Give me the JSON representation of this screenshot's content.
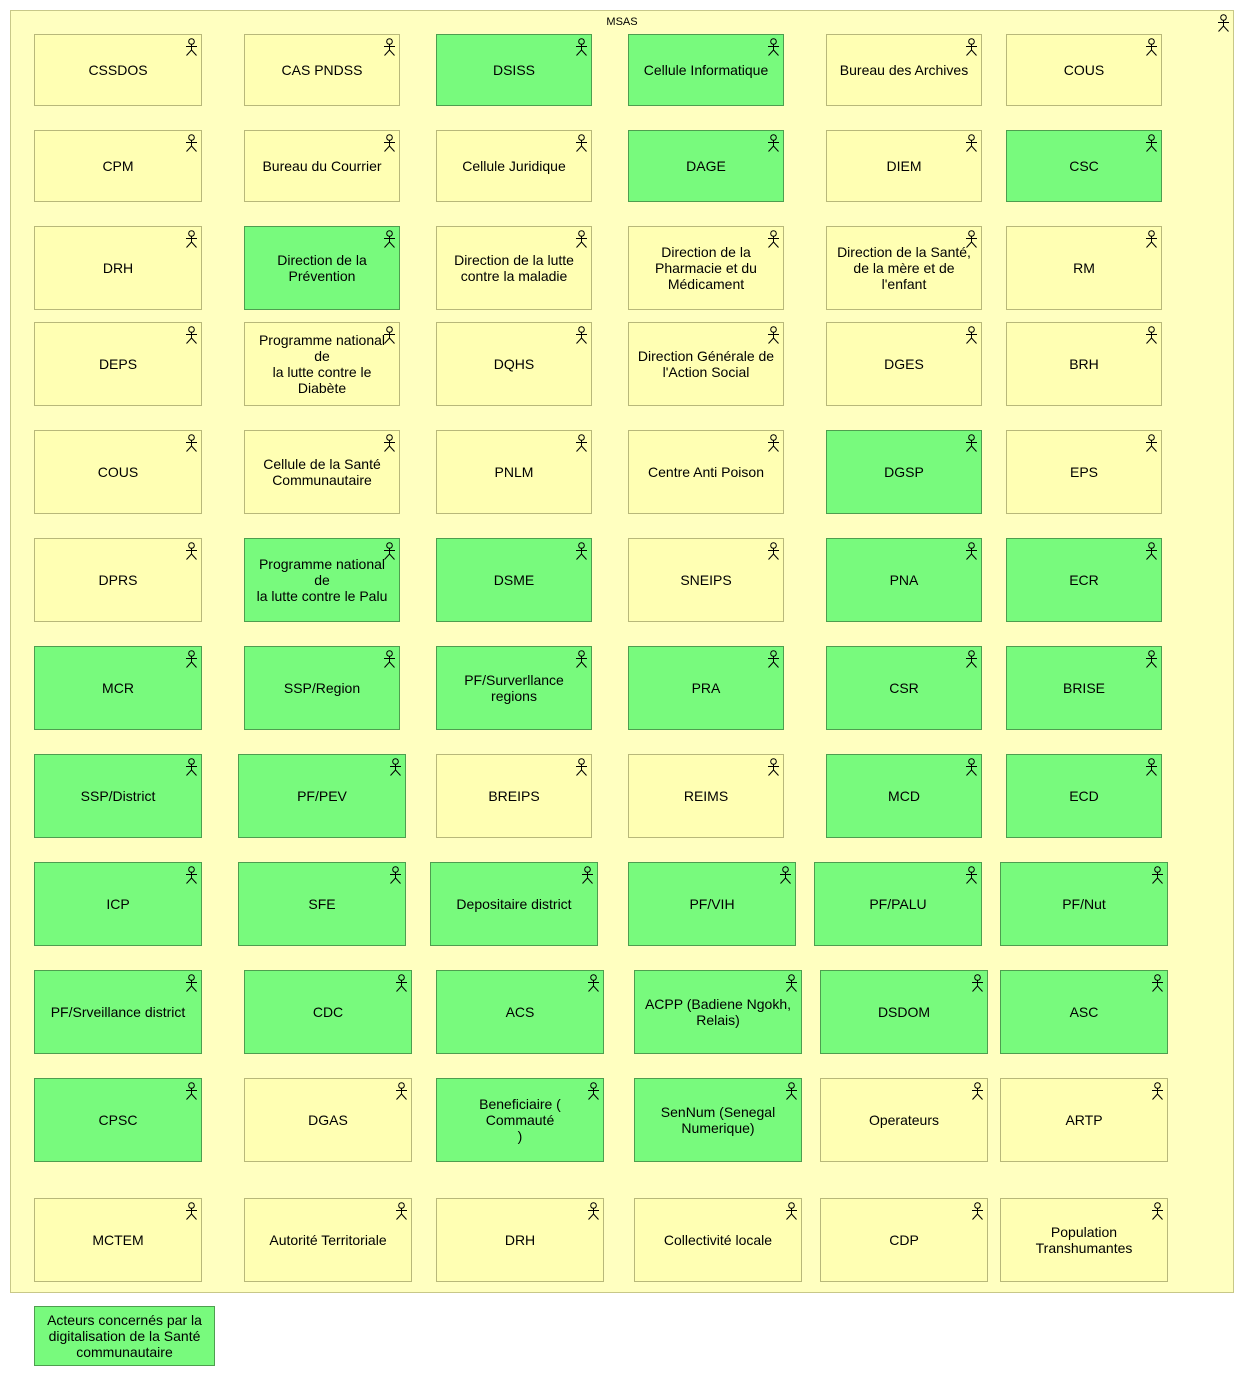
{
  "container": {
    "title": "MSAS"
  },
  "colors": {
    "default": "#ffffb3",
    "concerned": "#78fa7d"
  },
  "actors": [
    {
      "label": "CSSDOS",
      "status": "default"
    },
    {
      "label": "CAS PNDSS",
      "status": "default"
    },
    {
      "label": "DSISS",
      "status": "concerned"
    },
    {
      "label": "Cellule Informatique",
      "status": "concerned"
    },
    {
      "label": "Bureau des Archives",
      "status": "default"
    },
    {
      "label": "COUS",
      "status": "default"
    },
    {
      "label": "CPM",
      "status": "default"
    },
    {
      "label": "Bureau du Courrier",
      "status": "default"
    },
    {
      "label": "Cellule Juridique",
      "status": "default"
    },
    {
      "label": "DAGE",
      "status": "concerned"
    },
    {
      "label": "DIEM",
      "status": "default"
    },
    {
      "label": "CSC",
      "status": "concerned"
    },
    {
      "label": "DRH",
      "status": "default"
    },
    {
      "label": "Direction de la\nPrévention",
      "status": "concerned"
    },
    {
      "label": "Direction de la lutte\ncontre la maladie",
      "status": "default"
    },
    {
      "label": "Direction de la\nPharmacie et du\nMédicament",
      "status": "default"
    },
    {
      "label": "Direction de la Santé,\nde la mère et de\nl'enfant",
      "status": "default"
    },
    {
      "label": "RM",
      "status": "default"
    },
    {
      "label": "DEPS",
      "status": "default"
    },
    {
      "label": "Programme national de\nla lutte contre le\nDiabète",
      "status": "default"
    },
    {
      "label": "DQHS",
      "status": "default"
    },
    {
      "label": "Direction Générale de\nl'Action Social",
      "status": "default"
    },
    {
      "label": "DGES",
      "status": "default"
    },
    {
      "label": "BRH",
      "status": "default"
    },
    {
      "label": "COUS",
      "status": "default"
    },
    {
      "label": "Cellule de la Santé\nCommunautaire",
      "status": "default"
    },
    {
      "label": "PNLM",
      "status": "default"
    },
    {
      "label": "Centre Anti Poison",
      "status": "default"
    },
    {
      "label": "DGSP",
      "status": "concerned"
    },
    {
      "label": "EPS",
      "status": "default"
    },
    {
      "label": "DPRS",
      "status": "default"
    },
    {
      "label": "Programme national de\nla lutte contre le Palu",
      "status": "concerned"
    },
    {
      "label": "DSME",
      "status": "concerned"
    },
    {
      "label": "SNEIPS",
      "status": "default"
    },
    {
      "label": "PNA",
      "status": "concerned"
    },
    {
      "label": "ECR",
      "status": "concerned"
    },
    {
      "label": "MCR",
      "status": "concerned"
    },
    {
      "label": "SSP/Region",
      "status": "concerned"
    },
    {
      "label": "PF/Surverllance\nregions",
      "status": "concerned"
    },
    {
      "label": "PRA",
      "status": "concerned"
    },
    {
      "label": "CSR",
      "status": "concerned"
    },
    {
      "label": "BRISE",
      "status": "concerned"
    },
    {
      "label": "SSP/District",
      "status": "concerned"
    },
    {
      "label": "PF/PEV",
      "status": "concerned"
    },
    {
      "label": "BREIPS",
      "status": "default"
    },
    {
      "label": "REIMS",
      "status": "default"
    },
    {
      "label": "MCD",
      "status": "concerned"
    },
    {
      "label": "ECD",
      "status": "concerned"
    },
    {
      "label": "ICP",
      "status": "concerned"
    },
    {
      "label": "SFE",
      "status": "concerned"
    },
    {
      "label": "Depositaire district",
      "status": "concerned"
    },
    {
      "label": "PF/VIH",
      "status": "concerned"
    },
    {
      "label": "PF/PALU",
      "status": "concerned"
    },
    {
      "label": "PF/Nut",
      "status": "concerned"
    },
    {
      "label": "PF/Srveillance district",
      "status": "concerned"
    },
    {
      "label": "CDC",
      "status": "concerned"
    },
    {
      "label": "ACS",
      "status": "concerned"
    },
    {
      "label": "ACPP (Badiene Ngokh,\nRelais)",
      "status": "concerned"
    },
    {
      "label": "DSDOM",
      "status": "concerned"
    },
    {
      "label": "ASC",
      "status": "concerned"
    },
    {
      "label": "CPSC",
      "status": "concerned"
    },
    {
      "label": "DGAS",
      "status": "default"
    },
    {
      "label": "Beneficiaire ( Commauté\n)",
      "status": "concerned"
    },
    {
      "label": "SenNum (Senegal\nNumerique)",
      "status": "concerned"
    },
    {
      "label": "Operateurs",
      "status": "default"
    },
    {
      "label": "ARTP",
      "status": "default"
    },
    {
      "label": "MCTEM",
      "status": "default"
    },
    {
      "label": "Autorité Territoriale",
      "status": "default"
    },
    {
      "label": "DRH",
      "status": "default"
    },
    {
      "label": "Collectivité locale",
      "status": "default"
    },
    {
      "label": "CDP",
      "status": "default"
    },
    {
      "label": "Population\nTranshumantes",
      "status": "default"
    }
  ],
  "legend": {
    "label": "Acteurs concernés par la\ndigitalisation de la Santé\ncommunautaire",
    "status": "concerned"
  }
}
